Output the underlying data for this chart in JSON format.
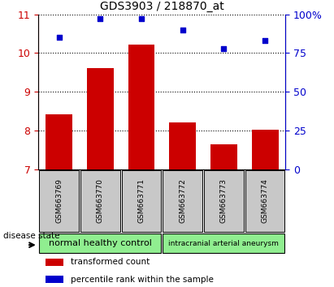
{
  "title": "GDS3903 / 218870_at",
  "samples": [
    "GSM663769",
    "GSM663770",
    "GSM663771",
    "GSM663772",
    "GSM663773",
    "GSM663774"
  ],
  "bar_values": [
    8.42,
    9.62,
    10.22,
    8.22,
    7.65,
    8.02
  ],
  "percentile_values": [
    85,
    97,
    97,
    90,
    78,
    83
  ],
  "bar_bottom": 7.0,
  "ylim_left": [
    7,
    11
  ],
  "ylim_right": [
    0,
    100
  ],
  "yticks_left": [
    7,
    8,
    9,
    10,
    11
  ],
  "yticks_right": [
    0,
    25,
    50,
    75,
    100
  ],
  "bar_color": "#cc0000",
  "dot_color": "#0000cc",
  "group1_label": "normal healthy control",
  "group2_label": "intracranial arterial aneurysm",
  "group1_color": "#90ee90",
  "group2_color": "#90ee90",
  "disease_state_label": "disease state",
  "legend_bar_label": "transformed count",
  "legend_dot_label": "percentile rank within the sample",
  "tick_color_left": "#cc0000",
  "tick_color_right": "#0000cc",
  "bar_width": 0.65,
  "sample_box_color": "#c8c8c8",
  "group_border_color": "#000000"
}
